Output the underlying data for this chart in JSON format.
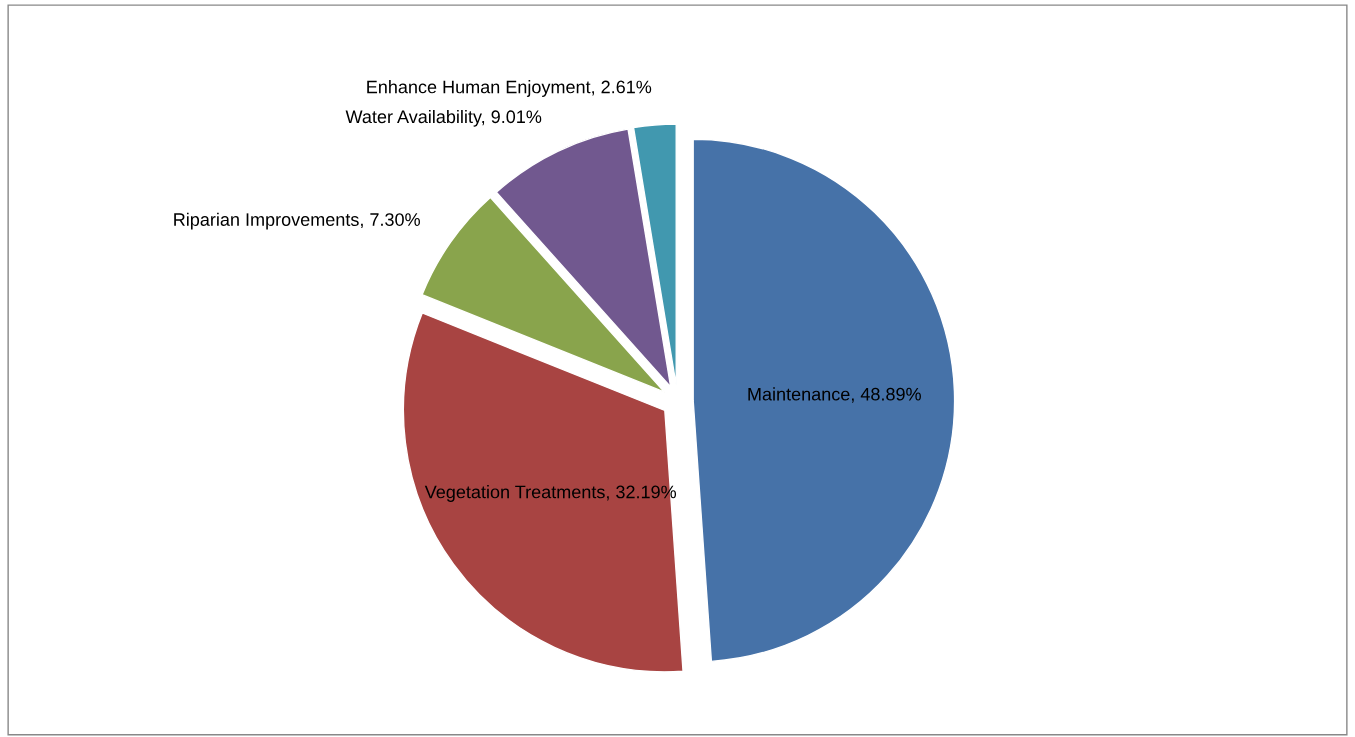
{
  "chart_data": {
    "type": "pie",
    "categories": [
      "Maintenance",
      "Vegetation Treatments",
      "Riparian Improvements",
      "Water Availability",
      "Enhance Human Enjoyment"
    ],
    "values": [
      48.89,
      32.19,
      7.3,
      9.01,
      2.61
    ],
    "value_labels": [
      "48.89%",
      "32.19%",
      "7.30%",
      "9.01%",
      "2.61%"
    ],
    "colors": [
      "#4672a8",
      "#a84442",
      "#89a44c",
      "#71588f",
      "#4198af"
    ],
    "legend": false
  }
}
